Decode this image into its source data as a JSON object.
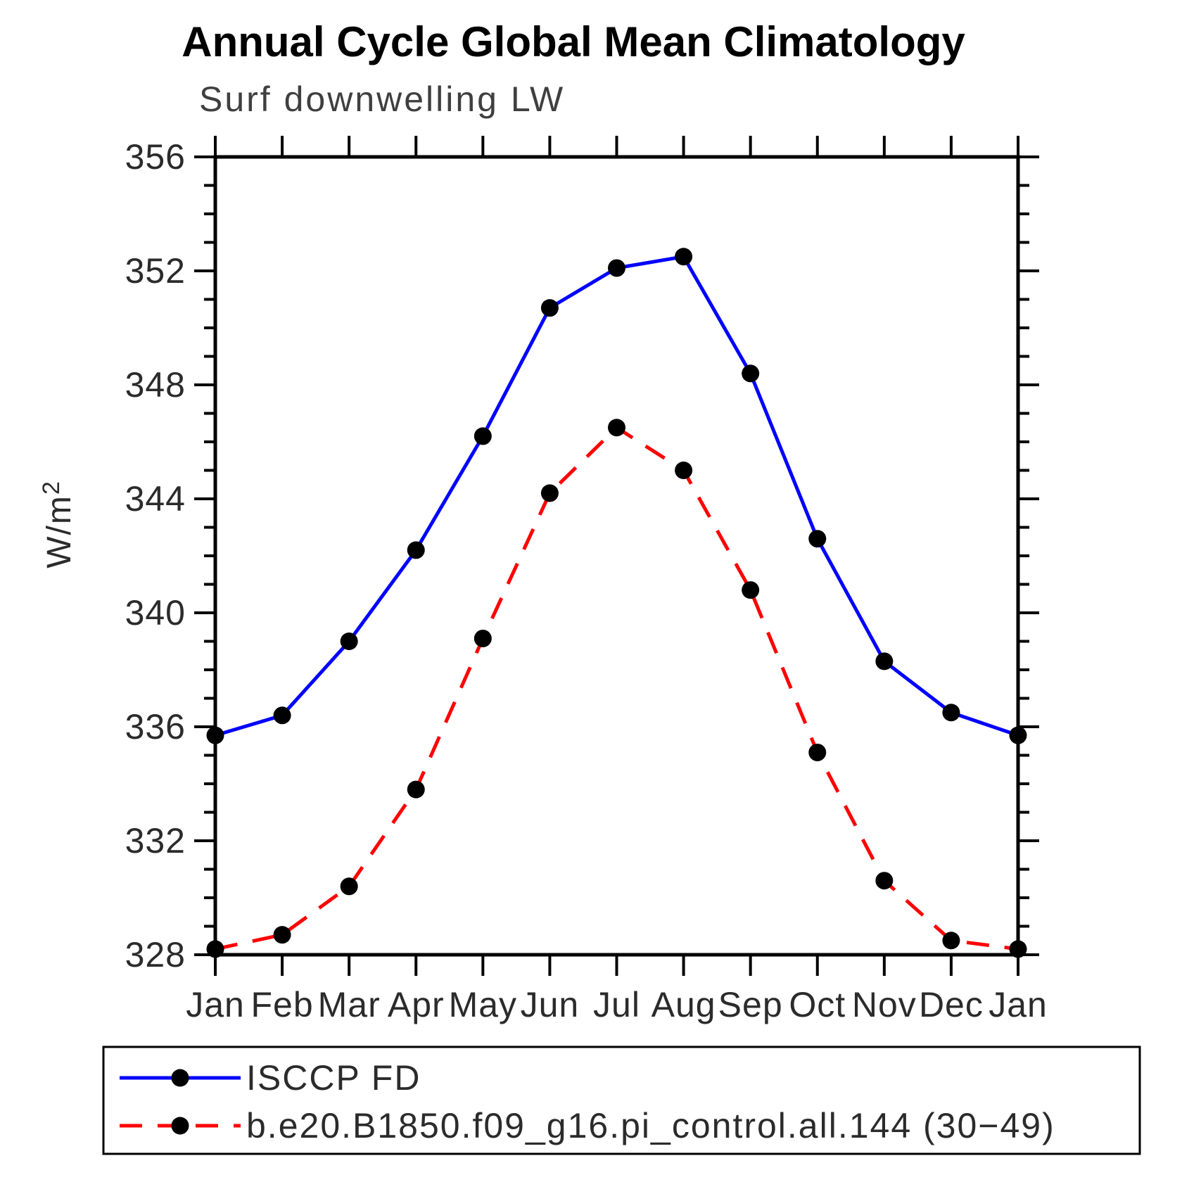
{
  "title": "Annual Cycle Global Mean Climatology",
  "subtitle": "Surf downwelling LW",
  "chart_data": {
    "type": "line",
    "categories": [
      "Jan",
      "Feb",
      "Mar",
      "Apr",
      "May",
      "Jun",
      "Jul",
      "Aug",
      "Sep",
      "Oct",
      "Nov",
      "Dec",
      "Jan"
    ],
    "ylabel": "W/m²",
    "ylim": [
      328,
      356
    ],
    "y_ticks": [
      328,
      332,
      336,
      340,
      344,
      348,
      352,
      356
    ],
    "y_minor_step": 1,
    "grid": false,
    "legend_position": "bottom",
    "series": [
      {
        "name": "ISCCP FD",
        "color": "#0000ff",
        "style": "solid",
        "marker": "circle",
        "marker_color": "#000000",
        "values": [
          335.7,
          336.4,
          339.0,
          342.2,
          346.2,
          350.7,
          352.1,
          352.5,
          348.4,
          342.6,
          338.3,
          336.5,
          335.7
        ]
      },
      {
        "name": "b.e20.B1850.f09_g16.pi_control.all.144 (30−49)",
        "color": "#ff0000",
        "style": "dashed",
        "marker": "circle",
        "marker_color": "#000000",
        "values": [
          328.2,
          328.7,
          330.4,
          333.8,
          339.1,
          344.2,
          346.5,
          345.0,
          340.8,
          335.1,
          330.6,
          328.5,
          328.2
        ]
      }
    ]
  },
  "colors": {
    "background": "#ffffff",
    "axis": "#000000",
    "title_text": "#000000",
    "subtitle_text": "#3f3f3f",
    "tick_text": "#2b2b2b",
    "series_blue": "#0000ff",
    "series_red": "#ff0000",
    "marker": "#000000"
  }
}
